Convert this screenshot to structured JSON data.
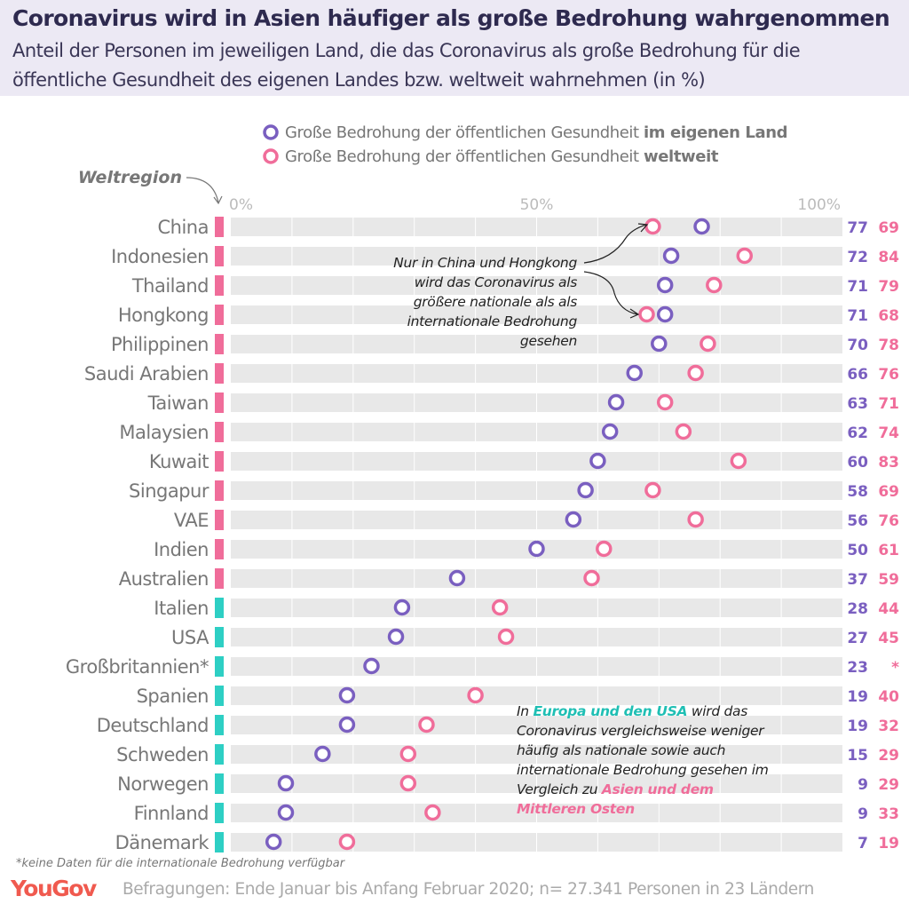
{
  "title": "Coronavirus wird in Asien häufiger als große Bedrohung wahrgenommen",
  "subtitle_line1": "Anteil der Personen im jeweiligen Land, die das Coronavirus als große Bedrohung für die",
  "subtitle_line2": "öffentliche Gesundheit des eigenen Landes bzw. weltweit wahrnehmen  (in %)",
  "colors": {
    "national": "#7a5fc0",
    "global": "#f06d9a",
    "asia": "#f06d9a",
    "europe_usa": "#2ecfc4",
    "bar": "#e8e8e8"
  },
  "notes": {
    "asia": [
      "Nur in China und Hongkong",
      "wird das Coronavirus als",
      "größere nationale als als",
      "internationale Bedrohung",
      "gesehen"
    ],
    "europe_pre": "In ",
    "europe_hl": "Europa und den USA",
    "europe_mid": " wird das Coronavirus vergleichsweise weniger häufig als nationale sowie auch internationale Bedrohung gesehen im Vergleich zu ",
    "europe_hl2": "Asien und dem Mittleren Osten"
  },
  "footnote": "*keine Daten für die internationale Bedrohung verfügbar",
  "logo": "YouGov",
  "source": "Befragungen: Ende Januar bis Anfang Februar 2020; n= 27.341 Personen in 23 Ländern",
  "chart_data": {
    "type": "dot",
    "region_label": "Weltregion",
    "xlim": [
      0,
      100
    ],
    "ticks": [
      "0%",
      "50%",
      "100%"
    ],
    "legend": [
      {
        "name": "Große Bedrohung der öffentlichen Gesundheit ",
        "bold": "im eigenen Land",
        "color": "#7a5fc0"
      },
      {
        "name": "Große Bedrohung der öffentlichen Gesundheit ",
        "bold": "weltweit",
        "color": "#f06d9a"
      }
    ],
    "categories": [
      "China",
      "Indonesien",
      "Thailand",
      "Hongkong",
      "Philippinen",
      "Saudi Arabien",
      "Taiwan",
      "Malaysien",
      "Kuwait",
      "Singapur",
      "VAE",
      "Indien",
      "Australien",
      "Italien",
      "USA",
      "Großbritannien*",
      "Spanien",
      "Deutschland",
      "Schweden",
      "Norwegen",
      "Finnland",
      "Dänemark"
    ],
    "region": [
      "Asien/Mittlerer Osten",
      "Asien/Mittlerer Osten",
      "Asien/Mittlerer Osten",
      "Asien/Mittlerer Osten",
      "Asien/Mittlerer Osten",
      "Asien/Mittlerer Osten",
      "Asien/Mittlerer Osten",
      "Asien/Mittlerer Osten",
      "Asien/Mittlerer Osten",
      "Asien/Mittlerer Osten",
      "Asien/Mittlerer Osten",
      "Asien/Mittlerer Osten",
      "Asien/Mittlerer Osten",
      "Europa/USA",
      "Europa/USA",
      "Europa/USA",
      "Europa/USA",
      "Europa/USA",
      "Europa/USA",
      "Europa/USA",
      "Europa/USA",
      "Europa/USA"
    ],
    "series": [
      {
        "name": "im eigenen Land",
        "values": [
          77,
          72,
          71,
          71,
          70,
          66,
          63,
          62,
          60,
          58,
          56,
          50,
          37,
          28,
          27,
          23,
          19,
          19,
          15,
          9,
          9,
          7
        ]
      },
      {
        "name": "weltweit",
        "values": [
          69,
          84,
          79,
          68,
          78,
          76,
          71,
          74,
          83,
          69,
          76,
          61,
          59,
          44,
          45,
          null,
          40,
          32,
          29,
          29,
          33,
          19
        ]
      }
    ]
  }
}
